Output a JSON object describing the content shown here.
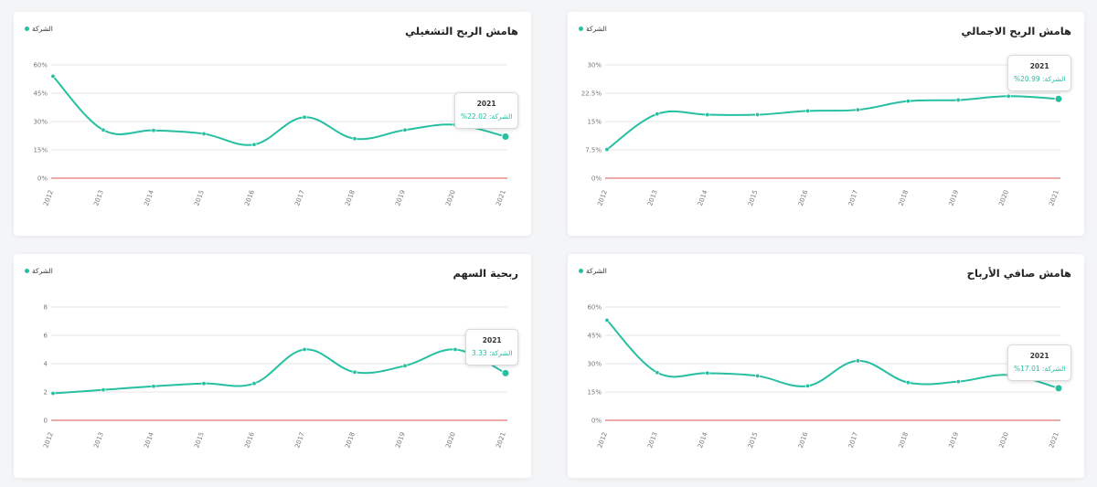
{
  "colors": {
    "series": "#26bfa0",
    "zero_line": "#d9534f",
    "grid": "#e6e6e6"
  },
  "chart_data": [
    {
      "id": "operating",
      "type": "line",
      "title": "هامش الربح التشغيلي",
      "legend": "الشركة",
      "x": [
        "2012",
        "2013",
        "2014",
        "2015",
        "2016",
        "2017",
        "2018",
        "2019",
        "2020",
        "2021"
      ],
      "series": [
        {
          "name": "الشركة",
          "values": [
            54,
            25.5,
            25.3,
            23.5,
            17.8,
            32.3,
            20.9,
            25.5,
            28.3,
            22.02
          ]
        }
      ],
      "yticks": [
        0,
        15,
        30,
        45,
        60
      ],
      "ytick_labels": [
        "0%",
        "15%",
        "30%",
        "45%",
        "60%"
      ],
      "ylim": [
        0,
        60
      ],
      "tooltip": {
        "year": "2021",
        "text": "الشركة: 22.02%"
      }
    },
    {
      "id": "gross",
      "type": "line",
      "title": "هامش الربح الاجمالي",
      "legend": "الشركة",
      "x": [
        "2012",
        "2013",
        "2014",
        "2015",
        "2016",
        "2017",
        "2018",
        "2019",
        "2020",
        "2021"
      ],
      "series": [
        {
          "name": "الشركة",
          "values": [
            7.6,
            17,
            16.8,
            16.8,
            17.8,
            18.1,
            20.4,
            20.7,
            21.7,
            20.99
          ]
        }
      ],
      "yticks": [
        0,
        7.5,
        15,
        22.5,
        30
      ],
      "ytick_labels": [
        "0%",
        "7.5%",
        "15%",
        "22.5%",
        "30%"
      ],
      "ylim": [
        0,
        30
      ],
      "tooltip": {
        "year": "2021",
        "text": "الشركة: 20.99%"
      }
    },
    {
      "id": "eps",
      "type": "line",
      "title": "ربحية السهم",
      "legend": "الشركة",
      "x": [
        "2012",
        "2013",
        "2014",
        "2015",
        "2016",
        "2017",
        "2018",
        "2019",
        "2020",
        "2021"
      ],
      "series": [
        {
          "name": "الشركة",
          "values": [
            1.9,
            2.15,
            2.4,
            2.6,
            2.6,
            5.0,
            3.4,
            3.85,
            5.0,
            3.33
          ]
        }
      ],
      "yticks": [
        0,
        2,
        4,
        6,
        8
      ],
      "ytick_labels": [
        "0",
        "2",
        "4",
        "6",
        "8"
      ],
      "ylim": [
        0,
        8
      ],
      "tooltip": {
        "year": "2021",
        "text": "الشركة: 3.33"
      }
    },
    {
      "id": "net",
      "type": "line",
      "title": "هامش صافي الأرباح",
      "legend": "الشركة",
      "x": [
        "2012",
        "2013",
        "2014",
        "2015",
        "2016",
        "2017",
        "2018",
        "2019",
        "2020",
        "2021"
      ],
      "series": [
        {
          "name": "الشركة",
          "values": [
            53,
            25.3,
            25.0,
            23.5,
            18.2,
            31.5,
            20.0,
            20.5,
            24.0,
            17.01
          ]
        }
      ],
      "yticks": [
        0,
        15,
        30,
        45,
        60
      ],
      "ytick_labels": [
        "0%",
        "15%",
        "30%",
        "45%",
        "60%"
      ],
      "ylim": [
        0,
        60
      ],
      "tooltip": {
        "year": "2021",
        "text": "الشركة: 17.01%"
      }
    }
  ]
}
